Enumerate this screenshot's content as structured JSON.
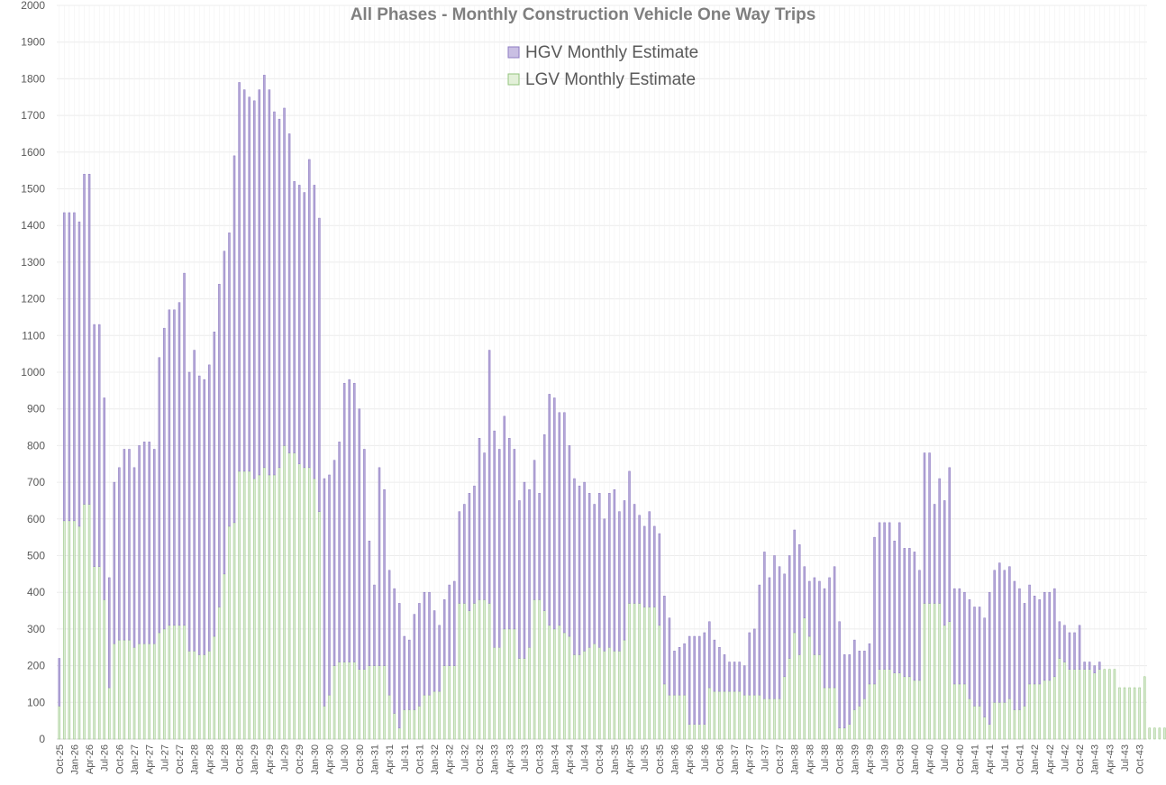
{
  "chart_data": {
    "type": "bar",
    "stacked": true,
    "title": "All Phases - Monthly Construction Vehicle One Way Trips",
    "xlabel": "",
    "ylabel": "",
    "ylim": [
      0,
      2000
    ],
    "yticks": [
      0,
      100,
      200,
      300,
      400,
      500,
      600,
      700,
      800,
      900,
      1000,
      1100,
      1200,
      1300,
      1400,
      1500,
      1600,
      1700,
      1800,
      1900,
      2000
    ],
    "grid": true,
    "legend_position": "top-center",
    "x_tick_labels": [
      "Oct-25",
      "Jan-26",
      "Apr-26",
      "Jul-26",
      "Oct-26",
      "Jan-27",
      "Apr-27",
      "Jul-27",
      "Oct-27",
      "Jan-28",
      "Apr-28",
      "Jul-28",
      "Oct-28",
      "Jan-29",
      "Apr-29",
      "Jul-29",
      "Oct-29",
      "Jan-30",
      "Apr-30",
      "Jul-30",
      "Oct-30",
      "Jan-31",
      "Apr-31",
      "Jul-31",
      "Oct-31",
      "Jan-32",
      "Apr-32",
      "Jul-32",
      "Oct-32",
      "Jan-33",
      "Apr-33",
      "Jul-33",
      "Oct-33",
      "Jan-34",
      "Apr-34",
      "Jul-34",
      "Oct-34",
      "Jan-35",
      "Apr-35",
      "Jul-35",
      "Oct-35",
      "Jan-36",
      "Apr-36",
      "Jul-36",
      "Oct-36",
      "Jan-37",
      "Apr-37",
      "Jul-37",
      "Oct-37",
      "Jan-38",
      "Apr-38",
      "Jul-38",
      "Oct-38",
      "Jan-39",
      "Apr-39",
      "Jul-39",
      "Oct-39",
      "Jan-40",
      "Apr-40",
      "Jul-40",
      "Oct-40",
      "Jan-41",
      "Apr-41",
      "Jul-41",
      "Oct-41",
      "Jan-42",
      "Apr-42",
      "Jul-42",
      "Oct-42",
      "Jan-43",
      "Apr-43",
      "Jul-43",
      "Oct-43"
    ],
    "colors": {
      "HGV": "#b4a7d6",
      "LGV": "#d9ead3",
      "HGV_edge": "#8e7cc3",
      "LGV_edge": "#93c47d",
      "grid": "#ececec",
      "title": "#7f7f7f",
      "axis_text": "#595959"
    },
    "series": [
      {
        "name": "HGV Monthly Estimate",
        "values": [
          130,
          840,
          840,
          840,
          830,
          900,
          900,
          660,
          660,
          550,
          300,
          440,
          470,
          520,
          520,
          490,
          540,
          550,
          550,
          530,
          750,
          820,
          860,
          860,
          880,
          960,
          760,
          820,
          760,
          750,
          780,
          830,
          880,
          880,
          800,
          1000,
          1060,
          1040,
          1020,
          1030,
          1050,
          1070,
          1050,
          990,
          950,
          920,
          870,
          740,
          760,
          750,
          840,
          800,
          800,
          620,
          600,
          560,
          600,
          760,
          770,
          760,
          710,
          600,
          340,
          220,
          540,
          480,
          340,
          340,
          340,
          200,
          190,
          260,
          280,
          280,
          280,
          220,
          180,
          180,
          220,
          230,
          250,
          270,
          320,
          320,
          440,
          400,
          690,
          590,
          540,
          580,
          520,
          490,
          430,
          480,
          430,
          380,
          290,
          480,
          630,
          630,
          580,
          600,
          520,
          480,
          460,
          460,
          420,
          380,
          420,
          360,
          420,
          440,
          380,
          380,
          360,
          270,
          240,
          220,
          260,
          220,
          250,
          240,
          210,
          120,
          130,
          140,
          240,
          240,
          240,
          250,
          180,
          140,
          120,
          100,
          80,
          80,
          80,
          80,
          170,
          180,
          300,
          400,
          330,
          390,
          360,
          280,
          280,
          280,
          300,
          140,
          150,
          210,
          200,
          270,
          300,
          330,
          290,
          200,
          190,
          190,
          150,
          130,
          110,
          400,
          400,
          400,
          400,
          360,
          410,
          350,
          350,
          350,
          300,
          410,
          410,
          270,
          340,
          340,
          420,
          260,
          260,
          250,
          270,
          270,
          270,
          270,
          360,
          360,
          380,
          360,
          360,
          350,
          330,
          280,
          270,
          240,
          230,
          240,
          240,
          240,
          100,
          100,
          100,
          100,
          120,
          20,
          20,
          20,
          20
        ]
      },
      {
        "name": "LGV Monthly Estimate",
        "values": [
          90,
          595,
          595,
          595,
          580,
          640,
          640,
          470,
          470,
          380,
          140,
          260,
          270,
          270,
          270,
          250,
          260,
          260,
          260,
          260,
          290,
          300,
          310,
          310,
          310,
          310,
          240,
          240,
          230,
          230,
          240,
          280,
          360,
          450,
          580,
          590,
          730,
          730,
          730,
          710,
          720,
          740,
          720,
          720,
          740,
          800,
          780,
          780,
          750,
          740,
          740,
          710,
          620,
          90,
          120,
          200,
          210,
          210,
          210,
          210,
          190,
          190,
          200,
          200,
          200,
          200,
          120,
          70,
          30,
          80,
          80,
          80,
          90,
          120,
          120,
          130,
          130,
          200,
          200,
          200,
          370,
          370,
          350,
          370,
          380,
          380,
          370,
          250,
          250,
          300,
          300,
          300,
          220,
          220,
          250,
          380,
          380,
          350,
          310,
          300,
          310,
          290,
          280,
          230,
          230,
          240,
          250,
          260,
          250,
          240,
          250,
          240,
          240,
          270,
          370,
          370,
          370,
          360,
          360,
          360,
          310,
          150,
          120,
          120,
          120,
          120,
          40,
          40,
          40,
          40,
          140,
          130,
          130,
          130,
          130,
          130,
          130,
          120,
          120,
          120,
          120,
          110,
          110,
          110,
          110,
          170,
          220,
          290,
          230,
          330,
          280,
          230,
          230,
          140,
          140,
          140,
          30,
          30,
          40,
          80,
          90,
          110,
          150,
          150,
          190,
          190,
          190,
          180,
          180,
          170,
          170,
          160,
          160,
          370,
          370,
          370,
          370,
          310,
          320,
          150,
          150,
          150,
          110,
          90,
          90,
          60,
          40,
          100,
          100,
          100,
          110,
          80,
          80,
          90,
          150,
          150,
          150,
          160,
          160,
          170,
          220,
          210,
          190,
          190,
          190,
          190,
          190,
          180,
          190,
          190,
          190,
          190,
          140,
          140,
          140,
          140,
          140,
          170,
          30,
          30,
          30,
          30,
          30,
          0,
          0,
          0,
          0
        ]
      }
    ]
  }
}
